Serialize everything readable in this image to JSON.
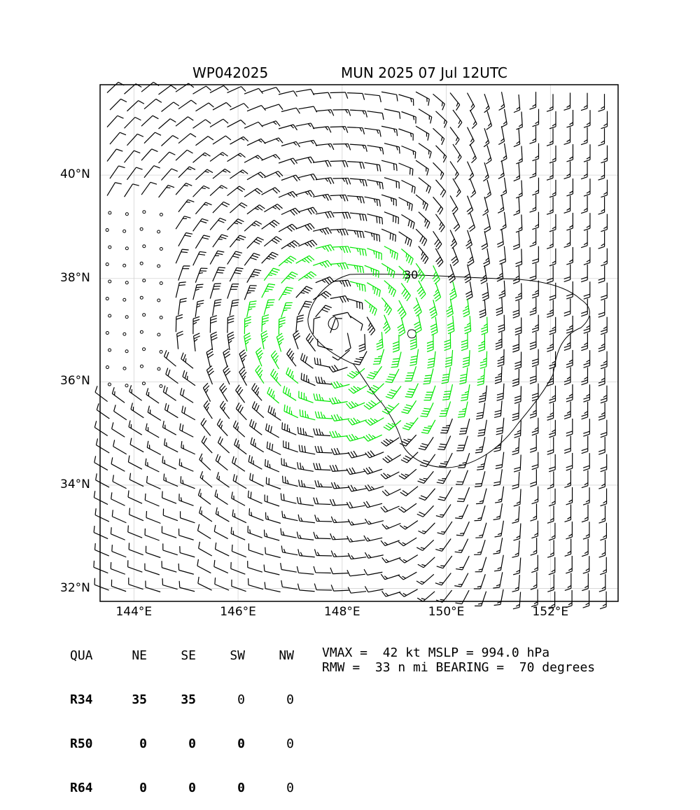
{
  "header": {
    "storm_id": "WP042025",
    "storm_info": "MUN 2025 07 Jul 12UTC"
  },
  "map": {
    "lon_range": [
      143.35,
      153.3
    ],
    "lat_range": [
      31.75,
      41.75
    ],
    "lon_ticks": [
      144,
      146,
      148,
      150,
      152
    ],
    "lon_tick_labels": [
      "144°E",
      "146°E",
      "148°E",
      "150°E",
      "152°E"
    ],
    "lat_ticks": [
      32,
      34,
      36,
      38,
      40
    ],
    "lat_tick_labels": [
      "32°N",
      "34°N",
      "36°N",
      "38°N",
      "40°N"
    ],
    "gridlines": true,
    "storm_center": {
      "lon": 147.9,
      "lat": 36.9
    },
    "contour_label": "30",
    "colors": {
      "low_wind": "#000000",
      "gale": "#00e600",
      "storm": "#e6b800",
      "grid": "#d3d3d3"
    }
  },
  "quadrants": {
    "header": [
      "QUA",
      "NE",
      "SE",
      "SW",
      "NW"
    ],
    "rows": [
      {
        "label": "R34",
        "values": [
          "35",
          "35",
          "0",
          "0"
        ]
      },
      {
        "label": "R50",
        "values": [
          "0",
          "0",
          "0",
          "0"
        ]
      },
      {
        "label": "R64",
        "values": [
          "0",
          "0",
          "0",
          "0"
        ]
      }
    ]
  },
  "stats": {
    "line1": "VMAX =  42 kt MSLP = 994.0 hPa",
    "line2": "RMW =  33 n mi BEARING =  70 degrees"
  }
}
